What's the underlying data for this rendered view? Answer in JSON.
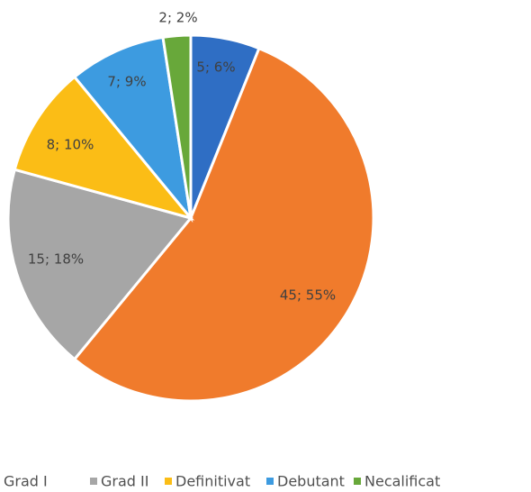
{
  "chart_data": {
    "type": "pie",
    "categories": [
      null,
      "Grad I",
      "Grad II",
      "Definitivat",
      "Debutant",
      "Necalificat"
    ],
    "values": [
      5,
      45,
      15,
      8,
      7,
      2
    ],
    "value_labels": [
      "5; 6%",
      "45; 55%",
      "15; 18%",
      "8; 10%",
      "7; 9%",
      "2; 2%"
    ],
    "colors": [
      "#2f6ec4",
      "#f07b2c",
      "#a6a6a6",
      "#fbbd16",
      "#3d9be0",
      "#68a83a"
    ],
    "legend": "bottom"
  }
}
